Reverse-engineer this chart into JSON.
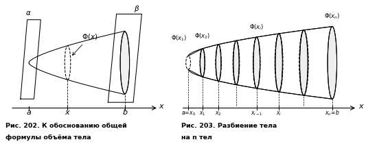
{
  "fig_width": 5.33,
  "fig_height": 2.23,
  "dpi": 100,
  "bg_color": "#ffffff",
  "caption1_line1": "Рис. 202. К обоснованию общей",
  "caption1_line2": "формулы объёма тела",
  "caption2_line1": "Рис. 203. Разбиение тела",
  "caption2_line2": "на n тел",
  "text_color": "#000000"
}
